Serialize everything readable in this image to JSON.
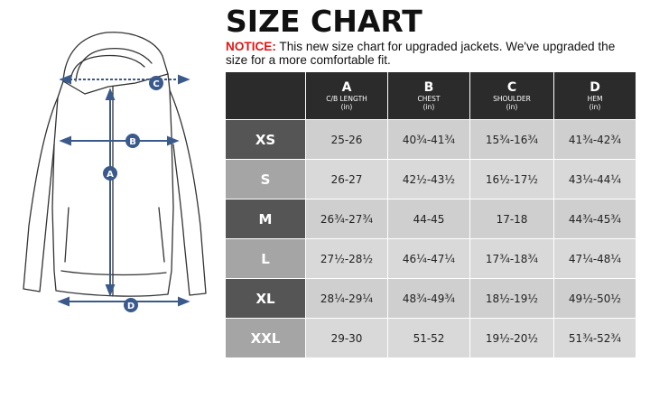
{
  "title": "SIZE CHART",
  "notice": {
    "label": "NOTICE:",
    "text": " This new size chart for upgraded jackets. We've upgraded the size for a more comfortable fit."
  },
  "diagram": {
    "markers": [
      "A",
      "B",
      "C",
      "D"
    ],
    "colors": {
      "marker": "#3a5a8c",
      "outline": "#333333"
    }
  },
  "table": {
    "columns": [
      {
        "letter": "",
        "name": "",
        "unit": ""
      },
      {
        "letter": "A",
        "name": "C/B LENGTH",
        "unit": "(in)"
      },
      {
        "letter": "B",
        "name": "CHEST",
        "unit": "(in)"
      },
      {
        "letter": "C",
        "name": "SHOULDER",
        "unit": "(in)"
      },
      {
        "letter": "D",
        "name": "HEM",
        "unit": "(in)"
      }
    ],
    "rows": [
      {
        "size": "XS",
        "values": [
          "25-26",
          "40¾-41¾",
          "15¾-16¾",
          "41¾-42¾"
        ]
      },
      {
        "size": "S",
        "values": [
          "26-27",
          "42½-43½",
          "16½-17½",
          "43¼-44¼"
        ]
      },
      {
        "size": "M",
        "values": [
          "26¾-27¾",
          "44-45",
          "17-18",
          "44¾-45¾"
        ]
      },
      {
        "size": "L",
        "values": [
          "27½-28½",
          "46¼-47¼",
          "17¾-18¾",
          "47¼-48¼"
        ]
      },
      {
        "size": "XL",
        "values": [
          "28¼-29¼",
          "48¾-49¾",
          "18½-19½",
          "49½-50½"
        ]
      },
      {
        "size": "XXL",
        "values": [
          "29-30",
          "51-52",
          "19½-20½",
          "51¾-52¾"
        ]
      }
    ]
  }
}
